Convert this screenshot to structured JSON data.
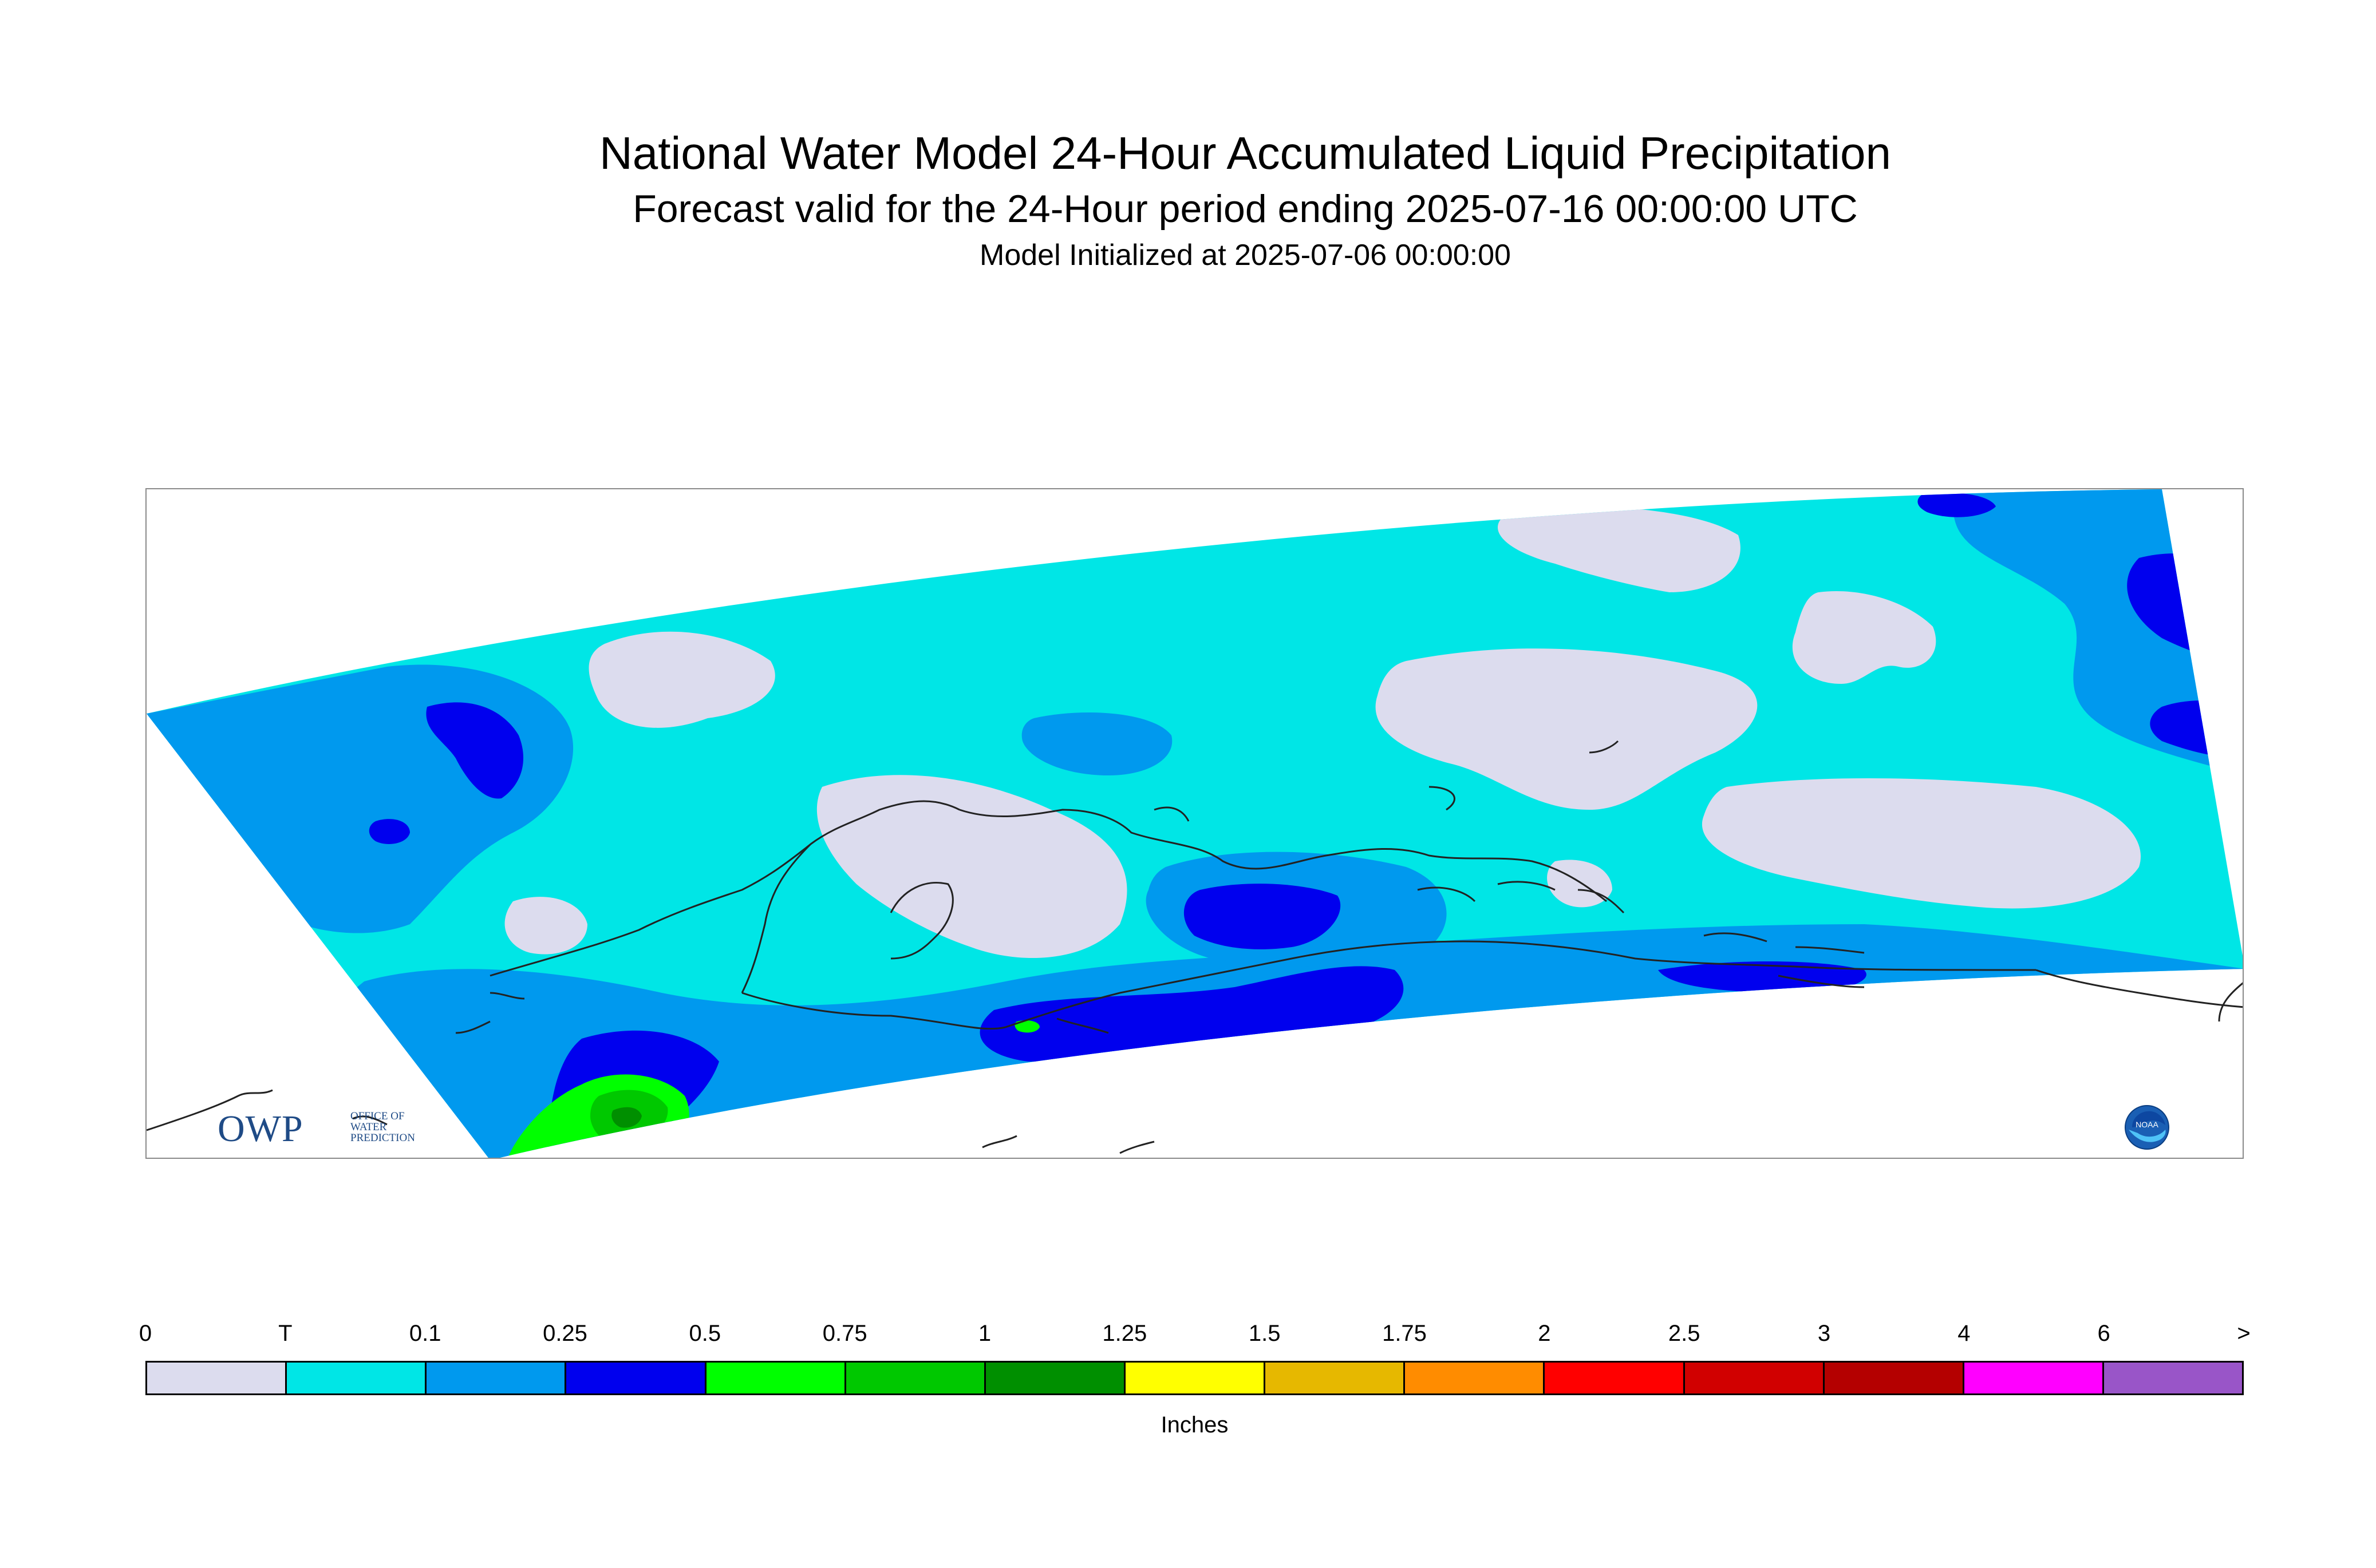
{
  "title": {
    "main": "National Water Model 24-Hour Accumulated Liquid Precipitation",
    "forecast": "Forecast valid for the 24-Hour period ending 2025-07-16 00:00:00 UTC",
    "initialized": "Model Initialized at 2025-07-06 00:00:00"
  },
  "logos": {
    "owp": {
      "text": "OWP",
      "lines": [
        "OFFICE OF",
        "WATER",
        "PREDICTION"
      ]
    },
    "noaa": {
      "text": "NOAA"
    }
  },
  "legend": {
    "units": "Inches",
    "tick_labels": [
      "0",
      "T",
      "0.1",
      "0.25",
      "0.5",
      "0.75",
      "1",
      "1.25",
      "1.5",
      "1.75",
      "2",
      "2.5",
      "3",
      "4",
      "6",
      ">"
    ],
    "colors": [
      "#dcdcee",
      "#00e6e6",
      "#0099ee",
      "#0000ee",
      "#00ff00",
      "#00c800",
      "#008f00",
      "#ffff00",
      "#e6b800",
      "#ff8c00",
      "#ff0000",
      "#d10000",
      "#b40000",
      "#ff00ff",
      "#9955c8"
    ]
  }
}
